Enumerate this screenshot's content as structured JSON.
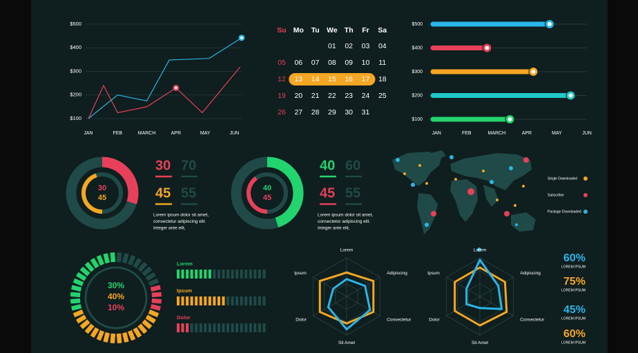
{
  "chart_data": [
    {
      "type": "line",
      "xticks": [
        {
          "value": 0,
          "label": "JAN"
        },
        {
          "value": 1,
          "label": "FEB"
        },
        {
          "value": 2,
          "label": "MARCH"
        },
        {
          "value": 3,
          "label": "APR"
        },
        {
          "value": 4,
          "label": "MAY"
        },
        {
          "value": 5,
          "label": "JUN"
        }
      ],
      "xlim": [
        0,
        5.25
      ],
      "ylim": [
        100,
        500
      ],
      "yticks": [
        {
          "value": 100,
          "label": "$100"
        },
        {
          "value": 200,
          "label": "$200"
        },
        {
          "value": 300,
          "label": "$300"
        },
        {
          "value": 400,
          "label": "$400"
        },
        {
          "value": 500,
          "label": "$500"
        }
      ],
      "grid": true,
      "series": [
        {
          "color": "#29b6e8",
          "x": [
            0,
            1,
            2,
            2.77,
            4.14,
            5.25
          ],
          "values": [
            100,
            200,
            175,
            348,
            355,
            442
          ]
        },
        {
          "color": "#e8405a",
          "x": [
            0,
            0.52,
            1,
            2,
            3,
            3.9,
            5.2
          ],
          "values": [
            100,
            240,
            125,
            150,
            230,
            125,
            319
          ]
        }
      ]
    },
    {
      "type": "lollipop",
      "categories": [
        "$500",
        "$400",
        "$300",
        "$200",
        "$100"
      ],
      "values": [
        3.76,
        1.68,
        3.22,
        4.46,
        2.44
      ],
      "colors": [
        "#29b6e8",
        "#e8405a",
        "#f5a623",
        "#1ec8c8",
        "#22d46e"
      ],
      "xlim": [
        -0.12,
        5
      ],
      "xticks": [
        {
          "value": 0,
          "label": "JAN"
        },
        {
          "value": 1,
          "label": "FEB"
        },
        {
          "value": 2,
          "label": "MARCH"
        },
        {
          "value": 3,
          "label": "APR"
        },
        {
          "value": 4,
          "label": "MAY"
        },
        {
          "value": 5,
          "label": "JUN"
        }
      ]
    },
    {
      "type": "radar",
      "axes": [
        "Lorem",
        "Adipiscing",
        "Consectetur",
        "Sit Amet",
        "Dolor",
        "Ipsum"
      ],
      "ylim": [
        0,
        100
      ],
      "series": [
        {
          "color": "#f5a623",
          "values": [
            62,
            80,
            80,
            70,
            80,
            80
          ]
        },
        {
          "color": "#29b6e8",
          "values": [
            45,
            55,
            70,
            85,
            55,
            40
          ]
        }
      ]
    },
    {
      "type": "radar",
      "axes": [
        "Lorem",
        "Adipiscing",
        "Consectetur",
        "Sit Amet",
        "Dolor",
        "Ipsum"
      ],
      "ylim": [
        0,
        100
      ],
      "series": [
        {
          "color": "#f5a623",
          "values": [
            75,
            75,
            80,
            75,
            75,
            75
          ]
        },
        {
          "color": "#29b6e8",
          "values": [
            95,
            55,
            65,
            30,
            40,
            40
          ]
        }
      ]
    }
  ],
  "calendar": {
    "weekdays": [
      "Su",
      "Mo",
      "Tu",
      "We",
      "Th",
      "Fr",
      "Sa"
    ],
    "weeks": [
      [
        null,
        null,
        null,
        "01",
        "02",
        "03",
        "04"
      ],
      [
        "05",
        "06",
        "07",
        "08",
        "09",
        "10",
        "11"
      ],
      [
        "12",
        "13",
        "14",
        "15",
        "16",
        "17",
        "18"
      ],
      [
        "19",
        "20",
        "21",
        "22",
        "23",
        "24",
        "25"
      ],
      [
        "26",
        "27",
        "28",
        "29",
        "30",
        "31",
        null
      ]
    ]
  },
  "donuts": [
    {
      "outer": {
        "value": 30,
        "color": "#e8405a"
      },
      "inner": {
        "value": 45,
        "color": "#f5a623"
      },
      "center": [
        "30",
        "45"
      ],
      "stats": [
        [
          "30",
          "70"
        ],
        [
          "45",
          "55"
        ]
      ],
      "text": [
        "Lorem ipsum dolor sit amet,",
        "consectetur adipiscing elit.",
        "Integer ante elit,"
      ]
    },
    {
      "outer": {
        "value": 45,
        "color": "#22d46e"
      },
      "inner": {
        "value": 40,
        "color": "#e8405a"
      },
      "center": [
        "40",
        "45"
      ],
      "stats": [
        [
          "40",
          "60"
        ],
        [
          "45",
          "55"
        ]
      ],
      "text": [
        "Lorem ipsum dolor sit amet,",
        "consectetur adipiscing elit.",
        "Integer ante elit,"
      ]
    }
  ],
  "map": {
    "legend": [
      {
        "label": "Single Downloaded",
        "color": "#f5a623"
      },
      {
        "label": "Subscriber",
        "color": "#e8405a"
      },
      {
        "label": "Package Downloaded",
        "color": "#29b6e8"
      }
    ]
  },
  "gauge": {
    "segments": [
      {
        "value": 30,
        "label": "30%",
        "color": "#22d46e"
      },
      {
        "value": 40,
        "label": "40%",
        "color": "#f5a623"
      },
      {
        "value": 10,
        "label": "10%",
        "color": "#e8405a"
      }
    ]
  },
  "progress": [
    {
      "label": "Lorem",
      "value": 40,
      "color": "#22d46e"
    },
    {
      "label": "Ipsum",
      "value": 55,
      "color": "#f5a623"
    },
    {
      "label": "Dolor",
      "value": 15,
      "color": "#e8405a"
    }
  ],
  "stats": [
    {
      "value": "60%",
      "label": "LOREM IPSUM",
      "color": "#29b6e8"
    },
    {
      "value": "75%",
      "label": "LOREM IPSUM",
      "color": "#f5a623"
    },
    {
      "value": "45%",
      "label": "LOREM IPSUM",
      "color": "#29b6e8"
    },
    {
      "value": "60%",
      "label": "LOREM IPSUM",
      "color": "#f5a623"
    }
  ]
}
